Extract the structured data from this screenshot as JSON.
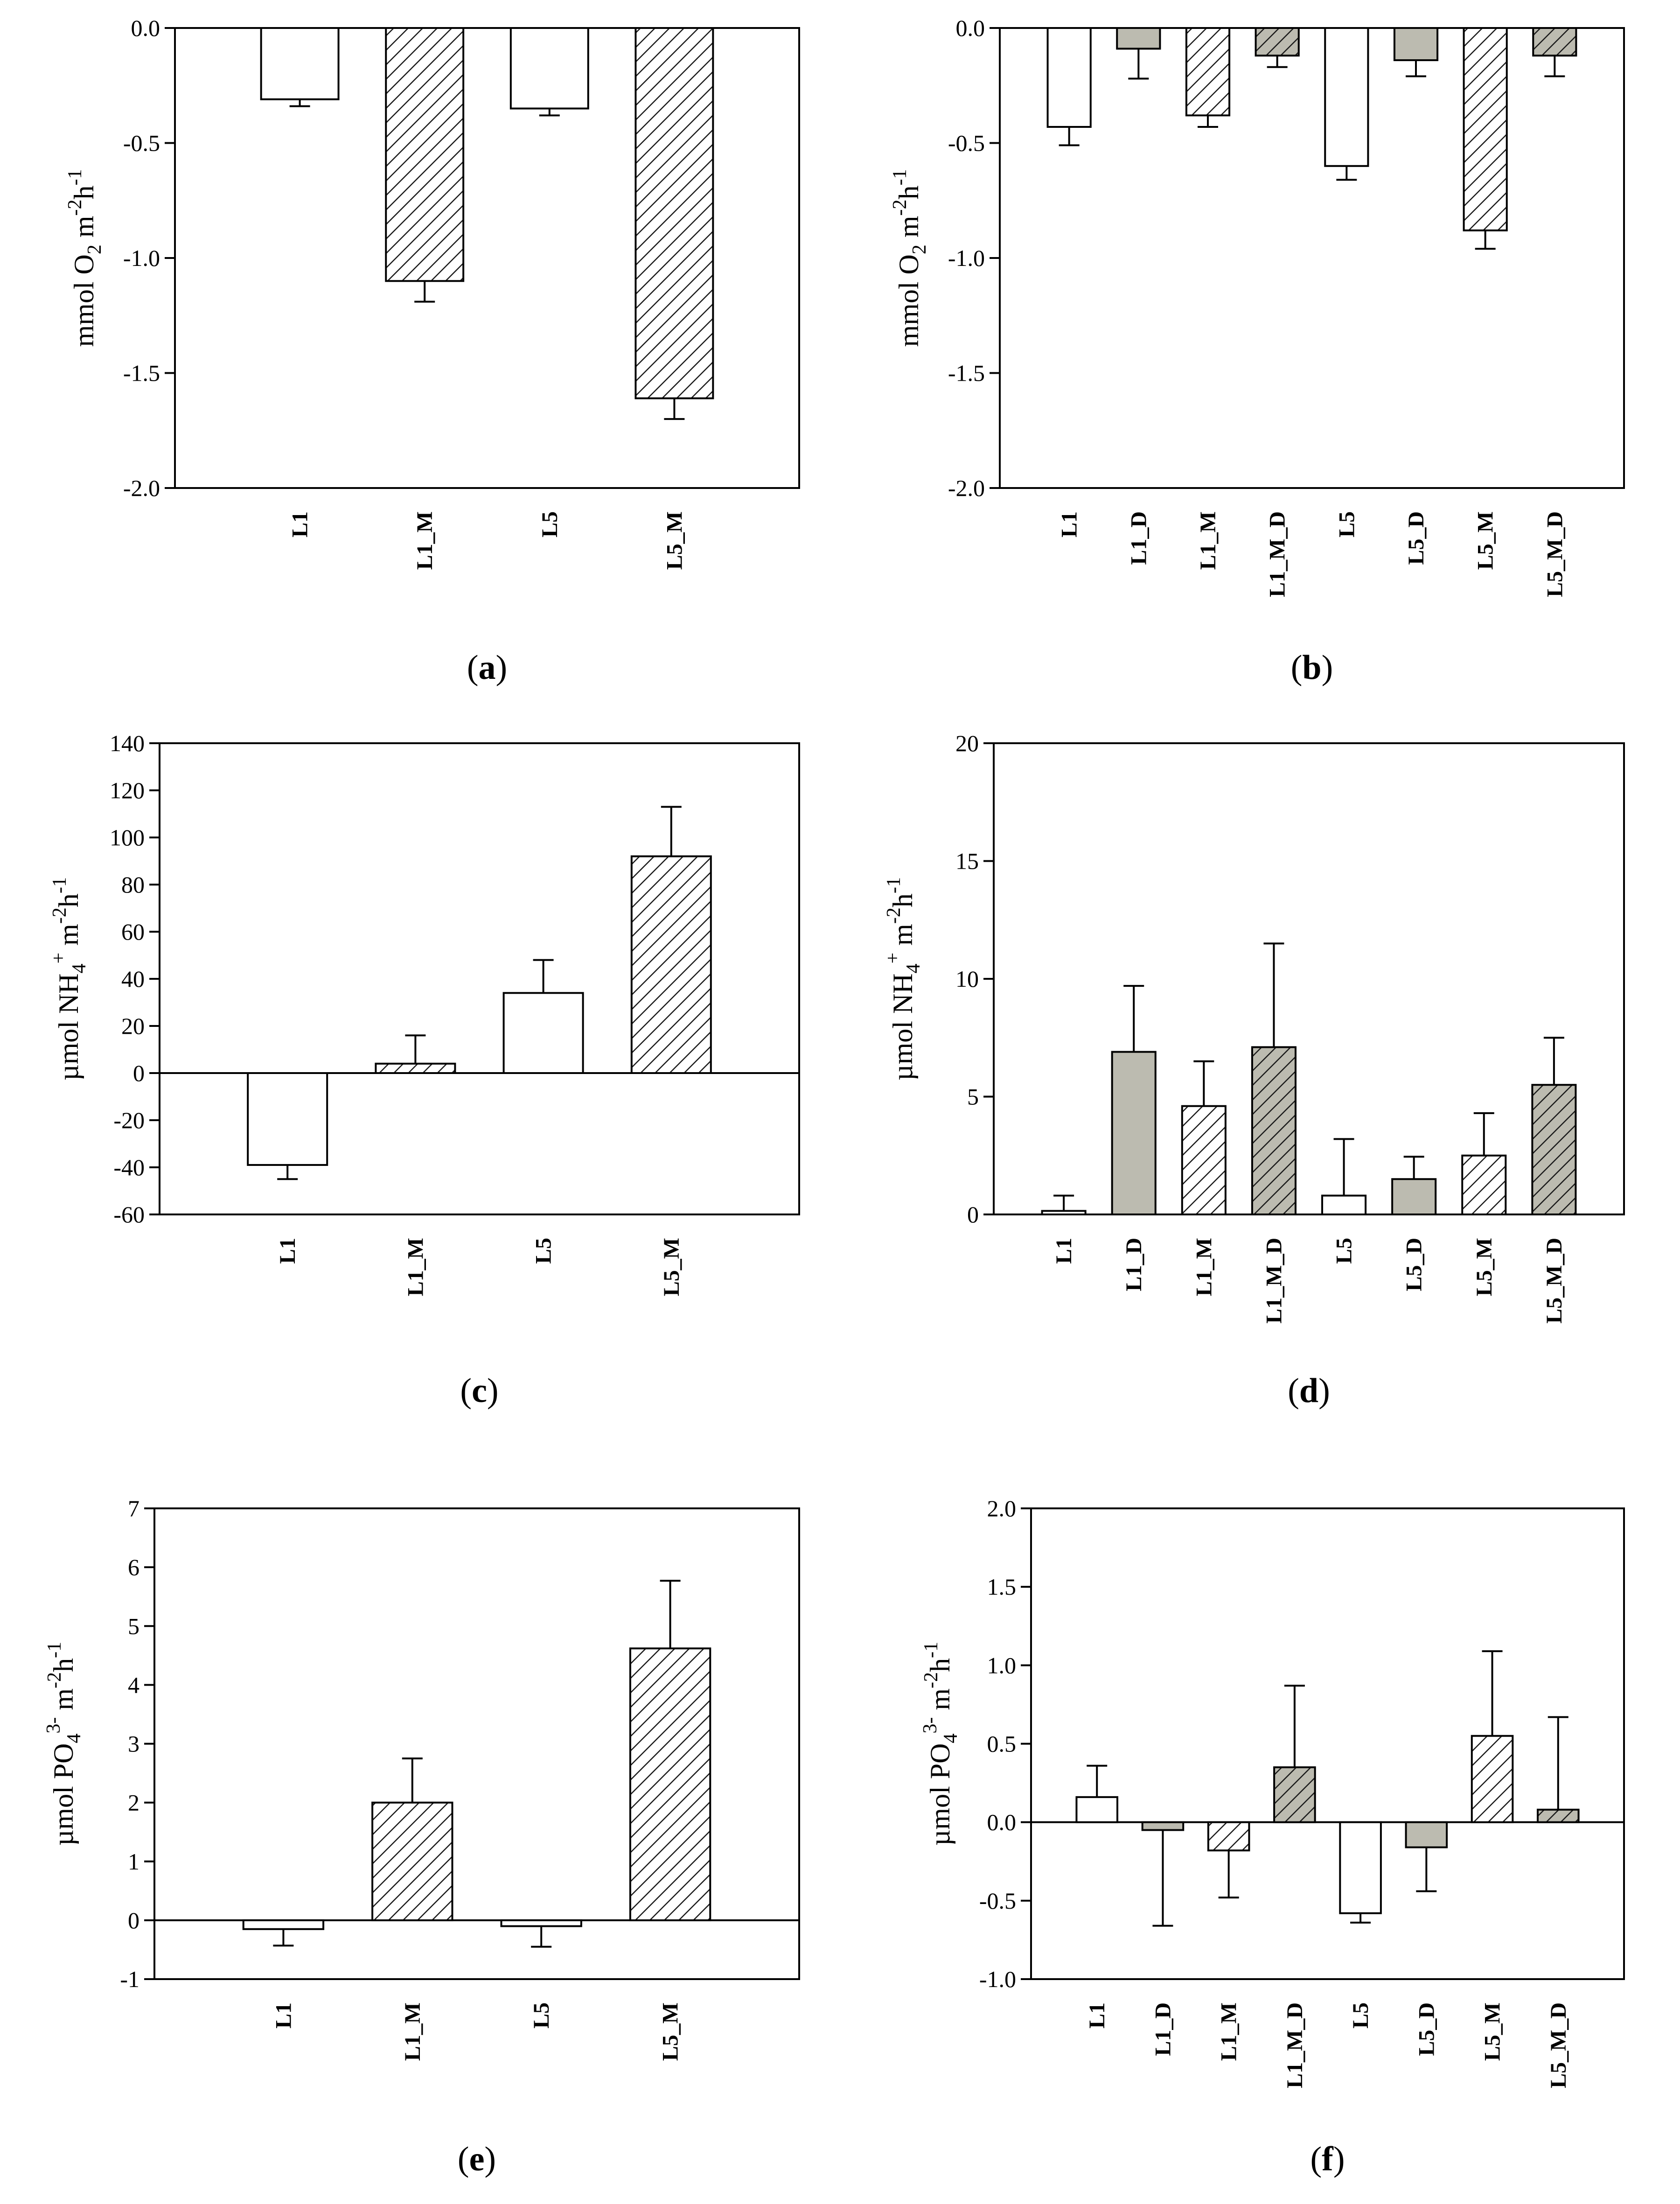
{
  "colors": {
    "plain_fill": "#ffffff",
    "dilution_fill": "#bcbbb0",
    "hatch_line": "#1a1a1a",
    "axis": "#000000"
  },
  "chart_data": [
    {
      "id": "a",
      "type": "bar",
      "caption": {
        "open": "(",
        "letter": "a",
        "close": ")"
      },
      "ylabel": {
        "main": "mmol O",
        "sub": "2",
        "rest": " m",
        "sup1": "-2",
        "h": "h",
        "sup2": "-1"
      },
      "ylim": [
        -2.0,
        0.0
      ],
      "yticks": [
        0.0,
        -0.5,
        -1.0,
        -1.5,
        -2.0
      ],
      "ytick_labels": [
        "0.0",
        "-0.5",
        "-1.0",
        "-1.5",
        "-2.0"
      ],
      "zero_line": false,
      "categories": [
        "L1",
        "L1_M",
        "L5",
        "L5_M"
      ],
      "values": [
        -0.31,
        -1.1,
        -0.35,
        -1.61
      ],
      "errors": [
        0.03,
        0.09,
        0.03,
        0.09
      ],
      "fills": [
        "plain",
        "hatch",
        "plain",
        "hatch"
      ]
    },
    {
      "id": "b",
      "type": "bar",
      "caption": {
        "open": "(",
        "letter": "b",
        "close": ")"
      },
      "ylabel": {
        "main": "mmol O",
        "sub": "2",
        "rest": " m",
        "sup1": "-2",
        "h": "h",
        "sup2": "-1"
      },
      "ylim": [
        -2.0,
        0.0
      ],
      "yticks": [
        0.0,
        -0.5,
        -1.0,
        -1.5,
        -2.0
      ],
      "ytick_labels": [
        "0.0",
        "-0.5",
        "-1.0",
        "-1.5",
        "-2.0"
      ],
      "zero_line": false,
      "categories": [
        "L1",
        "L1_D",
        "L1_M",
        "L1_M_D",
        "L5",
        "L5_D",
        "L5_M",
        "L5_M_D"
      ],
      "values": [
        -0.43,
        -0.09,
        -0.38,
        -0.12,
        -0.6,
        -0.14,
        -0.88,
        -0.12
      ],
      "errors": [
        0.08,
        0.13,
        0.05,
        0.05,
        0.06,
        0.07,
        0.08,
        0.09
      ],
      "fills": [
        "plain",
        "dilution",
        "hatch",
        "hatch_dilution",
        "plain",
        "dilution",
        "hatch",
        "hatch_dilution"
      ]
    },
    {
      "id": "c",
      "type": "bar",
      "caption": {
        "open": "(",
        "letter": "c",
        "close": ")"
      },
      "ylabel": {
        "main": "µmol NH",
        "sub": "4",
        "supplus": "+",
        "rest": " m",
        "sup1": "-2",
        "h": "h",
        "sup2": "-1"
      },
      "ylim": [
        -60,
        140
      ],
      "yticks": [
        140,
        120,
        100,
        80,
        60,
        40,
        20,
        0,
        -20,
        -40,
        -60
      ],
      "ytick_labels": [
        "140",
        "120",
        "100",
        "80",
        "60",
        "40",
        "20",
        "0",
        "-20",
        "-40",
        "-60"
      ],
      "zero_line": true,
      "categories": [
        "L1",
        "L1_M",
        "L5",
        "L5_M"
      ],
      "values": [
        -39,
        4,
        34,
        92
      ],
      "errors": [
        6,
        12,
        14,
        21
      ],
      "fills": [
        "plain",
        "hatch",
        "plain",
        "hatch"
      ]
    },
    {
      "id": "d",
      "type": "bar",
      "caption": {
        "open": "(",
        "letter": "d",
        "close": ")"
      },
      "ylabel": {
        "main": "µmol NH",
        "sub": "4",
        "supplus": "+",
        "rest": " m",
        "sup1": "-2",
        "h": "h",
        "sup2": "-1"
      },
      "ylim": [
        0,
        20
      ],
      "yticks": [
        20,
        15,
        10,
        5,
        0
      ],
      "ytick_labels": [
        "20",
        "15",
        "10",
        "5",
        "0"
      ],
      "zero_line": false,
      "categories": [
        "L1",
        "L1_D",
        "L1_M",
        "L1_M_D",
        "L5",
        "L5_D",
        "L5_M",
        "L5_M_D"
      ],
      "values": [
        0.15,
        6.9,
        4.6,
        7.1,
        0.8,
        1.5,
        2.5,
        5.5
      ],
      "errors": [
        0.65,
        2.8,
        1.9,
        4.4,
        2.4,
        0.95,
        1.8,
        2.0
      ],
      "fills": [
        "plain",
        "dilution",
        "hatch",
        "hatch_dilution",
        "plain",
        "dilution",
        "hatch",
        "hatch_dilution"
      ]
    },
    {
      "id": "e",
      "type": "bar",
      "caption": {
        "open": "(",
        "letter": "e",
        "close": ")"
      },
      "ylabel": {
        "main": "µmol PO",
        "sub": "4",
        "supplus": "3-",
        "rest": " m",
        "sup1": "-2",
        "h": "h",
        "sup2": "-1"
      },
      "ylim": [
        -1,
        7
      ],
      "yticks": [
        7,
        6,
        5,
        4,
        3,
        2,
        1,
        0,
        -1
      ],
      "ytick_labels": [
        "7",
        "6",
        "5",
        "4",
        "3",
        "2",
        "1",
        "0",
        "-1"
      ],
      "zero_line": true,
      "categories": [
        "L1",
        "L1_M",
        "L5",
        "L5_M"
      ],
      "values": [
        -0.15,
        2.0,
        -0.1,
        4.62
      ],
      "errors": [
        0.28,
        0.75,
        0.35,
        1.15
      ],
      "fills": [
        "plain",
        "hatch",
        "plain",
        "hatch"
      ]
    },
    {
      "id": "f",
      "type": "bar",
      "caption": {
        "open": "(",
        "letter": "f",
        "close": ")"
      },
      "ylabel": {
        "main": "µmol PO",
        "sub": "4",
        "supplus": "3-",
        "rest": " m",
        "sup1": "-2",
        "h": "h",
        "sup2": "-1"
      },
      "ylim": [
        -1.0,
        2.0
      ],
      "yticks": [
        2.0,
        1.5,
        1.0,
        0.5,
        0.0,
        -0.5,
        -1.0
      ],
      "ytick_labels": [
        "2.0",
        "1.5",
        "1.0",
        "0.5",
        "0.0",
        "-0.5",
        "-1.0"
      ],
      "zero_line": true,
      "categories": [
        "L1",
        "L1_D",
        "L1_M",
        "L1_M_D",
        "L5",
        "L5_D",
        "L5_M",
        "L5_M_D"
      ],
      "values": [
        0.16,
        -0.05,
        -0.18,
        0.35,
        -0.58,
        -0.16,
        0.55,
        0.08
      ],
      "errors": [
        0.2,
        0.61,
        0.3,
        0.52,
        0.06,
        0.28,
        0.54,
        0.59
      ],
      "fills": [
        "plain",
        "dilution",
        "hatch",
        "hatch_dilution",
        "plain",
        "dilution",
        "hatch",
        "hatch_dilution"
      ]
    }
  ]
}
